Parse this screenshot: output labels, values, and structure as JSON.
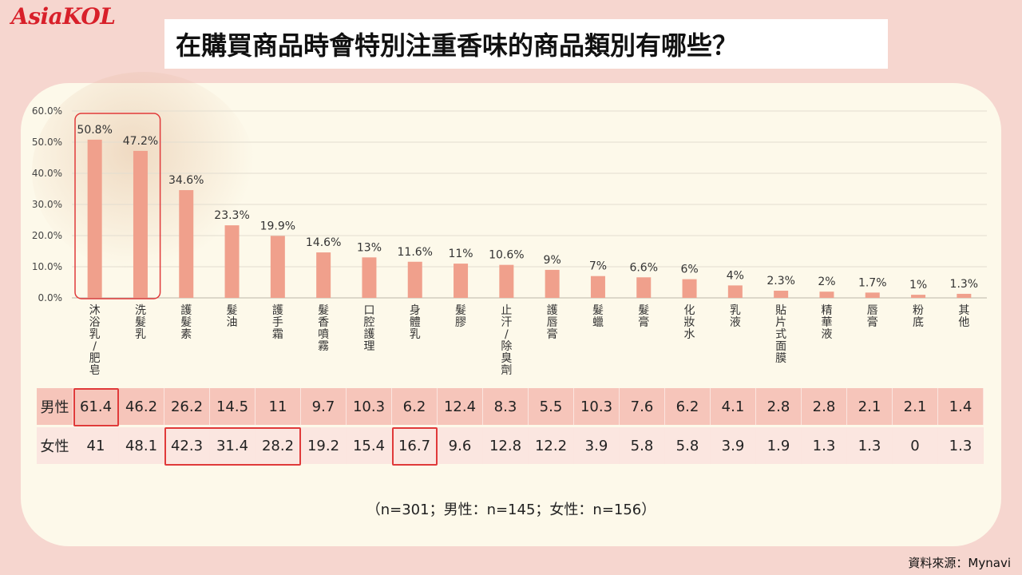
{
  "logo": "AsiaKOL",
  "title": "在購買商品時會特別注重香味的商品類別有哪些？",
  "chart_data": {
    "type": "bar",
    "categories": [
      "沐浴乳/肥皂",
      "洗髮乳",
      "護髮素",
      "髮油",
      "護手霜",
      "髮香噴霧",
      "口腔護理",
      "身體乳",
      "髮膠",
      "止汗/除臭劑",
      "護唇膏",
      "髮蠟",
      "髮膏",
      "化妝水",
      "乳液",
      "貼片式面膜",
      "精華液",
      "唇膏",
      "粉底",
      "其他"
    ],
    "values": [
      50.8,
      47.2,
      34.6,
      23.3,
      19.9,
      14.6,
      13,
      11.6,
      11,
      10.6,
      9,
      7,
      6.6,
      6,
      4,
      2.3,
      2,
      1.7,
      1,
      1.3
    ],
    "value_labels": [
      "50.8%",
      "47.2%",
      "34.6%",
      "23.3%",
      "19.9%",
      "14.6%",
      "13%",
      "11.6%",
      "11%",
      "10.6%",
      "9%",
      "7%",
      "6.6%",
      "6%",
      "4%",
      "2.3%",
      "2%",
      "1.7%",
      "1%",
      "1.3%"
    ],
    "ylim": [
      0,
      60
    ],
    "yticks": [
      "0.0%",
      "10.0%",
      "20.0%",
      "30.0%",
      "40.0%",
      "50.0%",
      "60.0%"
    ],
    "bar_color": "#f0a08c",
    "grid": true
  },
  "table": {
    "rows": [
      {
        "label": "男性",
        "values": [
          "61.4",
          "46.2",
          "26.2",
          "14.5",
          "11",
          "9.7",
          "10.3",
          "6.2",
          "12.4",
          "8.3",
          "5.5",
          "10.3",
          "7.6",
          "6.2",
          "4.1",
          "2.8",
          "2.8",
          "2.1",
          "2.1",
          "1.4"
        ]
      },
      {
        "label": "女性",
        "values": [
          "41",
          "48.1",
          "42.3",
          "31.4",
          "28.2",
          "19.2",
          "15.4",
          "16.7",
          "9.6",
          "12.8",
          "12.2",
          "3.9",
          "5.8",
          "5.8",
          "3.9",
          "1.9",
          "1.3",
          "1.3",
          "0",
          "1.3"
        ]
      }
    ]
  },
  "note": "（n=301；男性：n=145；女性：n=156）",
  "source": "資料來源：Mynavi"
}
